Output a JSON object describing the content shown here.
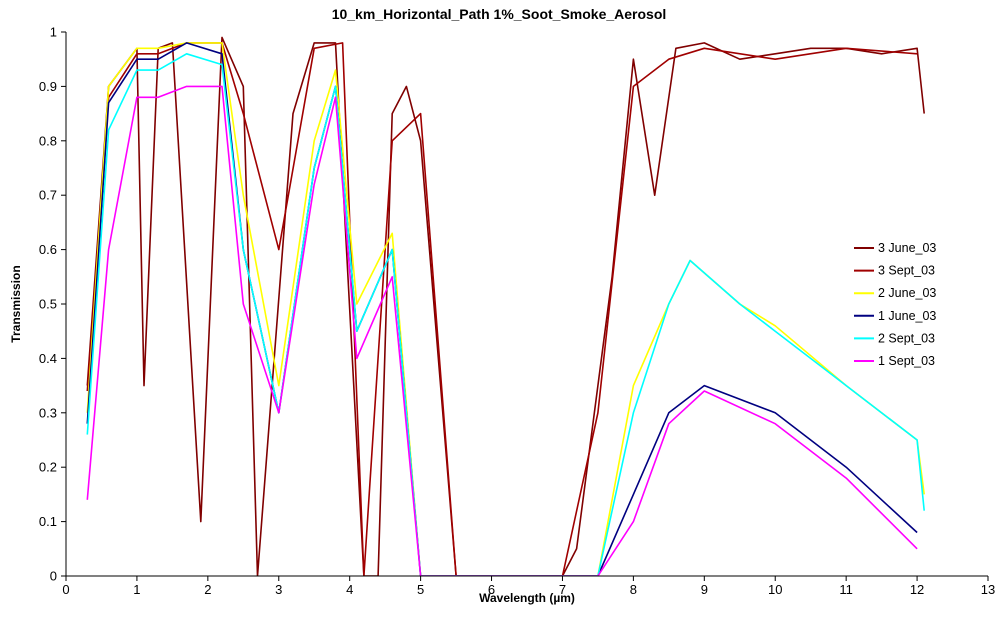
{
  "chart_data": {
    "type": "line",
    "title": "10_km_Horizontal_Path 1%_Soot_Smoke_Aerosol",
    "xlabel": "Wavelength (µm)",
    "ylabel": "Transmission",
    "xlim": [
      0,
      13
    ],
    "ylim": [
      0,
      1
    ],
    "xticks": [
      "0",
      "1",
      "2",
      "3",
      "4",
      "5",
      "6",
      "7",
      "8",
      "9",
      "10",
      "11",
      "12",
      "13"
    ],
    "yticks": [
      "0",
      "0.1",
      "0.2",
      "0.3",
      "0.4",
      "0.5",
      "0.6",
      "0.7",
      "0.8",
      "0.9",
      "1"
    ],
    "grid": false,
    "legend_position": "right",
    "series": [
      {
        "name": "3 June_03",
        "color": "#800000",
        "x": [
          0.3,
          0.6,
          1.0,
          1.1,
          1.3,
          1.5,
          1.9,
          2.2,
          2.5,
          2.7,
          3.2,
          3.5,
          3.8,
          4.2,
          4.4,
          4.6,
          4.8,
          5.0,
          5.5,
          6.0,
          7.0,
          7.2,
          7.7,
          8.0,
          8.3,
          8.6,
          9.0,
          9.5,
          10.0,
          10.5,
          11.0,
          11.5,
          12.0,
          12.1
        ],
        "y": [
          0.35,
          0.9,
          0.97,
          0.35,
          0.97,
          0.98,
          0.1,
          0.99,
          0.9,
          0.0,
          0.85,
          0.98,
          0.98,
          0.0,
          0.0,
          0.85,
          0.9,
          0.8,
          0.0,
          0.0,
          0.0,
          0.05,
          0.55,
          0.95,
          0.7,
          0.97,
          0.98,
          0.95,
          0.96,
          0.97,
          0.97,
          0.96,
          0.97,
          0.85
        ]
      },
      {
        "name": "3 Sept_03",
        "color": "#a00000",
        "x": [
          0.3,
          0.6,
          1.0,
          1.3,
          1.7,
          2.2,
          2.5,
          3.0,
          3.5,
          3.9,
          4.2,
          4.6,
          5.0,
          5.5,
          7.0,
          7.5,
          8.0,
          8.5,
          9.0,
          10.0,
          11.0,
          12.0
        ],
        "y": [
          0.34,
          0.88,
          0.96,
          0.96,
          0.98,
          0.98,
          0.85,
          0.6,
          0.97,
          0.98,
          0.0,
          0.8,
          0.85,
          0.0,
          0.0,
          0.3,
          0.9,
          0.95,
          0.97,
          0.95,
          0.97,
          0.96
        ]
      },
      {
        "name": "2 June_03",
        "color": "#ffff00",
        "x": [
          0.3,
          0.6,
          1.0,
          1.3,
          1.7,
          2.2,
          2.5,
          3.0,
          3.5,
          3.8,
          4.1,
          4.6,
          5.0,
          7.5,
          8.0,
          8.5,
          8.8,
          9.5,
          10.0,
          11.0,
          12.0,
          12.1
        ],
        "y": [
          0.3,
          0.9,
          0.97,
          0.97,
          0.98,
          0.98,
          0.7,
          0.35,
          0.8,
          0.93,
          0.5,
          0.63,
          0.0,
          0.0,
          0.35,
          0.5,
          0.58,
          0.5,
          0.46,
          0.35,
          0.25,
          0.15
        ]
      },
      {
        "name": "1 June_03",
        "color": "#000080",
        "x": [
          0.3,
          0.6,
          1.0,
          1.3,
          1.7,
          2.2,
          2.5,
          3.0,
          3.5,
          3.8,
          4.1,
          4.6,
          5.0,
          7.5,
          8.0,
          8.5,
          9.0,
          10.0,
          11.0,
          12.0
        ],
        "y": [
          0.28,
          0.87,
          0.95,
          0.95,
          0.98,
          0.96,
          0.6,
          0.3,
          0.75,
          0.9,
          0.45,
          0.6,
          0.0,
          0.0,
          0.15,
          0.3,
          0.35,
          0.3,
          0.2,
          0.08
        ]
      },
      {
        "name": "2 Sept_03",
        "color": "#00ffff",
        "x": [
          0.3,
          0.6,
          1.0,
          1.3,
          1.7,
          2.2,
          2.5,
          3.0,
          3.5,
          3.8,
          4.1,
          4.6,
          5.0,
          7.5,
          8.0,
          8.5,
          8.8,
          9.5,
          10.0,
          11.0,
          12.0,
          12.1
        ],
        "y": [
          0.26,
          0.82,
          0.93,
          0.93,
          0.96,
          0.94,
          0.6,
          0.3,
          0.75,
          0.9,
          0.45,
          0.6,
          0.0,
          0.0,
          0.3,
          0.5,
          0.58,
          0.5,
          0.45,
          0.35,
          0.25,
          0.12
        ]
      },
      {
        "name": "1 Sept_03",
        "color": "#ff00ff",
        "x": [
          0.3,
          0.6,
          1.0,
          1.3,
          1.7,
          2.2,
          2.5,
          3.0,
          3.5,
          3.8,
          4.1,
          4.6,
          5.0,
          7.5,
          8.0,
          8.5,
          9.0,
          10.0,
          11.0,
          12.0
        ],
        "y": [
          0.14,
          0.6,
          0.88,
          0.88,
          0.9,
          0.9,
          0.5,
          0.3,
          0.72,
          0.88,
          0.4,
          0.55,
          0.0,
          0.0,
          0.1,
          0.28,
          0.34,
          0.28,
          0.18,
          0.05
        ]
      }
    ]
  }
}
